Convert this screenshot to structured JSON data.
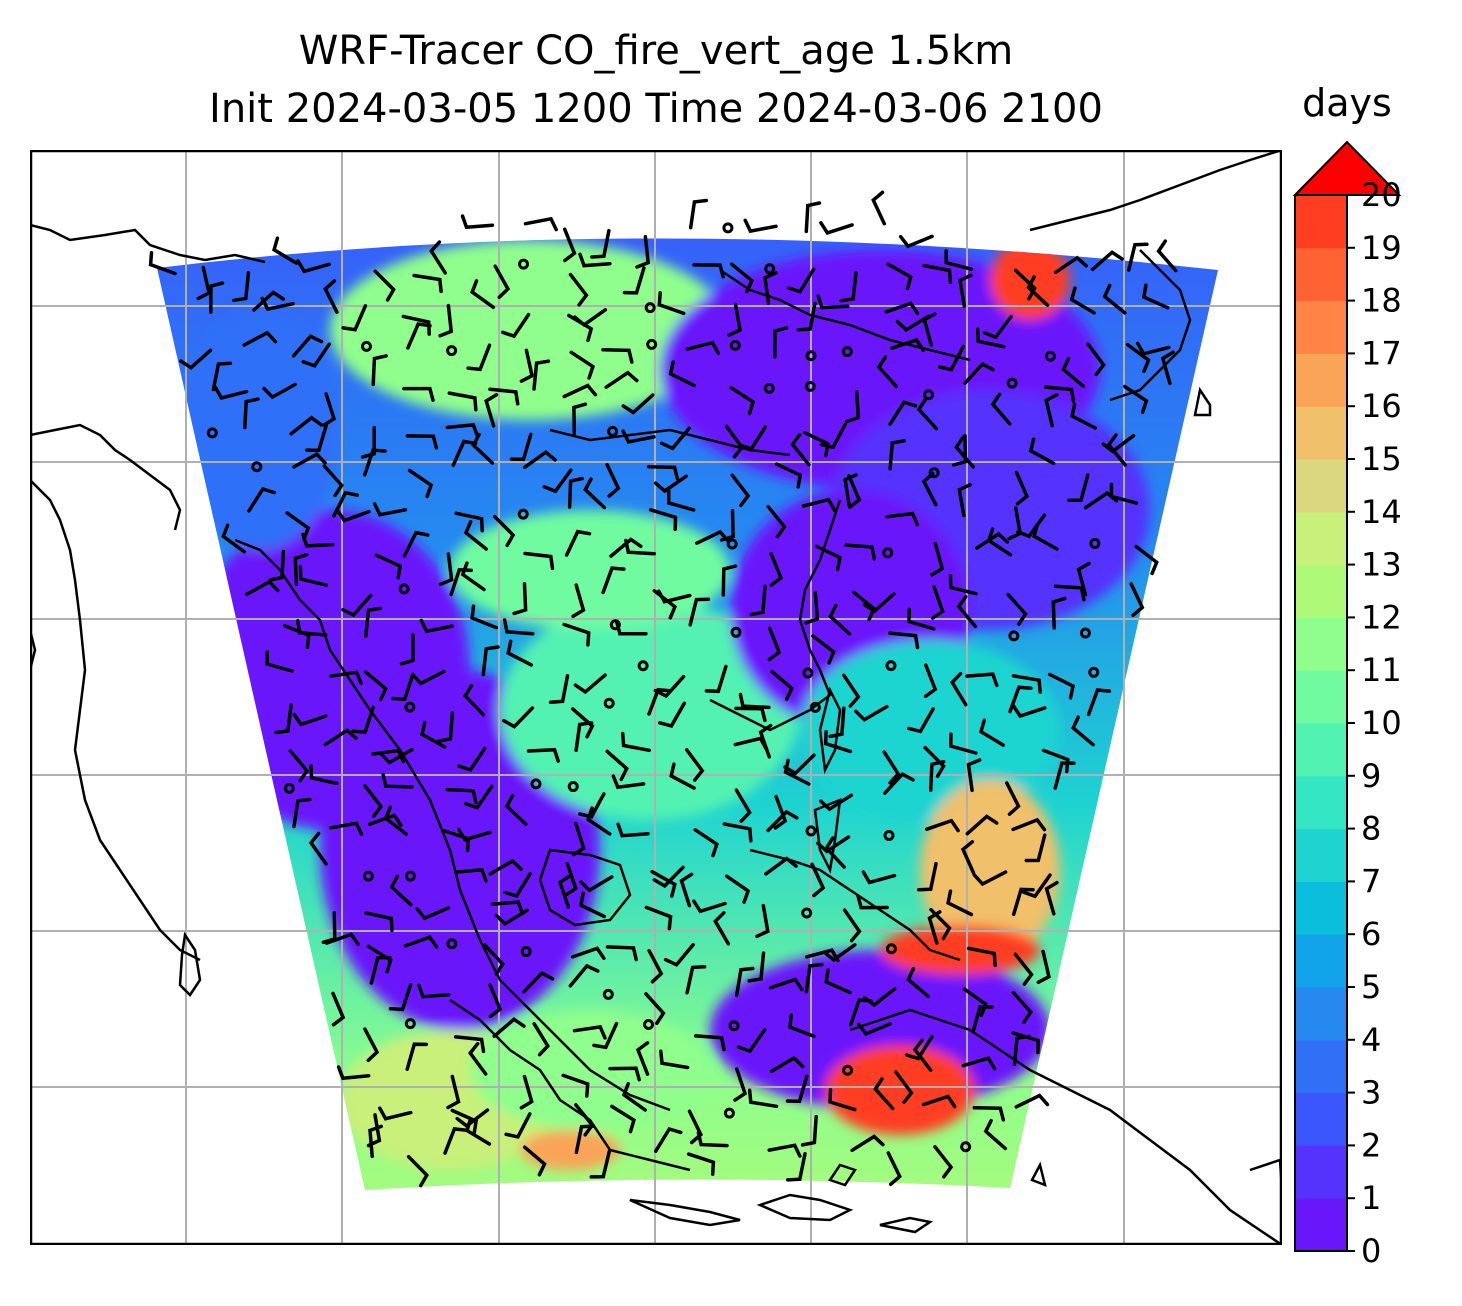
{
  "title": {
    "line1": "WRF-Tracer CO_fire_vert_age 1.5km",
    "line2": "Init 2024-03-05 1200 Time 2024-03-06 2100"
  },
  "colorbar": {
    "unit_label": "days",
    "min": 0,
    "max": 20,
    "step": 1,
    "extend": "max",
    "tick_labels": [
      "0",
      "1",
      "2",
      "3",
      "4",
      "5",
      "6",
      "7",
      "8",
      "9",
      "10",
      "11",
      "12",
      "13",
      "14",
      "15",
      "16",
      "17",
      "18",
      "19",
      "20"
    ],
    "colormap": "rainbow",
    "level_colors": [
      "#6a16fb",
      "#5533fd",
      "#3b55fc",
      "#2f70f7",
      "#2589f0",
      "#12a4ea",
      "#0abedc",
      "#1fd4d0",
      "#35e6c4",
      "#52f2b2",
      "#70fba0",
      "#8ffe8c",
      "#aefa78",
      "#c8f07a",
      "#dad780",
      "#f0c06a",
      "#f9a456",
      "#ff8445",
      "#ff6334",
      "#ff3d20",
      "#ff1a0a"
    ],
    "over_color": "#ff0000"
  },
  "map": {
    "projection": "regional",
    "gridlines": true,
    "coastlines": true,
    "domain_shape": "curved-trapezoid",
    "features": [
      "wind-barbs",
      "calm-circles",
      "coastlines",
      "gridlines"
    ]
  }
}
